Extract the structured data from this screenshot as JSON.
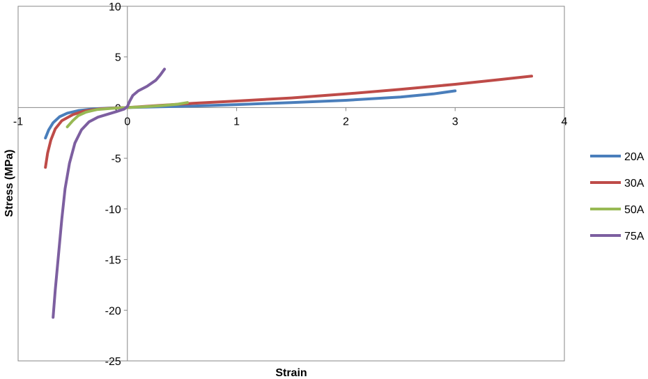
{
  "chart_data": {
    "type": "scatter",
    "xlabel": "Strain",
    "ylabel": "Stress (MPa)",
    "xlim": [
      -1,
      4
    ],
    "ylim": [
      -25,
      10
    ],
    "xticks": [
      -1,
      0,
      1,
      2,
      3,
      4
    ],
    "yticks": [
      10,
      5,
      0,
      -5,
      -10,
      -15,
      -20,
      -25
    ],
    "legend": "right",
    "series": [
      {
        "name": "20A",
        "color": "#4a7ebb",
        "points": [
          [
            -0.75,
            -3.0
          ],
          [
            -0.72,
            -2.2
          ],
          [
            -0.68,
            -1.5
          ],
          [
            -0.62,
            -0.9
          ],
          [
            -0.55,
            -0.55
          ],
          [
            -0.45,
            -0.3
          ],
          [
            -0.3,
            -0.12
          ],
          [
            -0.15,
            -0.04
          ],
          [
            0.0,
            0.0
          ],
          [
            0.3,
            0.08
          ],
          [
            0.6,
            0.15
          ],
          [
            1.0,
            0.3
          ],
          [
            1.5,
            0.5
          ],
          [
            2.0,
            0.72
          ],
          [
            2.5,
            1.05
          ],
          [
            2.8,
            1.35
          ],
          [
            3.0,
            1.65
          ]
        ]
      },
      {
        "name": "30A",
        "color": "#be4b48",
        "points": [
          [
            -0.75,
            -5.9
          ],
          [
            -0.73,
            -4.5
          ],
          [
            -0.7,
            -3.2
          ],
          [
            -0.66,
            -2.1
          ],
          [
            -0.6,
            -1.3
          ],
          [
            -0.5,
            -0.7
          ],
          [
            -0.4,
            -0.35
          ],
          [
            -0.25,
            -0.12
          ],
          [
            -0.1,
            -0.03
          ],
          [
            0.0,
            0.0
          ],
          [
            0.3,
            0.22
          ],
          [
            0.6,
            0.42
          ],
          [
            1.0,
            0.65
          ],
          [
            1.5,
            0.95
          ],
          [
            2.0,
            1.35
          ],
          [
            2.5,
            1.8
          ],
          [
            3.0,
            2.3
          ],
          [
            3.4,
            2.75
          ],
          [
            3.7,
            3.1
          ]
        ]
      },
      {
        "name": "50A",
        "color": "#98b954",
        "points": [
          [
            -0.55,
            -1.9
          ],
          [
            -0.5,
            -1.3
          ],
          [
            -0.45,
            -0.8
          ],
          [
            -0.38,
            -0.45
          ],
          [
            -0.28,
            -0.2
          ],
          [
            -0.15,
            -0.08
          ],
          [
            0.0,
            0.0
          ],
          [
            0.15,
            0.08
          ],
          [
            0.3,
            0.18
          ],
          [
            0.45,
            0.32
          ],
          [
            0.55,
            0.5
          ]
        ]
      },
      {
        "name": "75A",
        "color": "#7d5fa0",
        "points": [
          [
            -0.68,
            -20.7
          ],
          [
            -0.66,
            -18.0
          ],
          [
            -0.63,
            -14.5
          ],
          [
            -0.6,
            -11.0
          ],
          [
            -0.57,
            -8.0
          ],
          [
            -0.53,
            -5.5
          ],
          [
            -0.48,
            -3.5
          ],
          [
            -0.42,
            -2.2
          ],
          [
            -0.35,
            -1.4
          ],
          [
            -0.27,
            -0.95
          ],
          [
            -0.18,
            -0.65
          ],
          [
            -0.1,
            -0.4
          ],
          [
            -0.03,
            -0.15
          ],
          [
            0.0,
            0.1
          ],
          [
            0.02,
            0.6
          ],
          [
            0.05,
            1.2
          ],
          [
            0.1,
            1.65
          ],
          [
            0.18,
            2.1
          ],
          [
            0.26,
            2.7
          ],
          [
            0.3,
            3.2
          ],
          [
            0.34,
            3.8
          ]
        ]
      }
    ]
  }
}
